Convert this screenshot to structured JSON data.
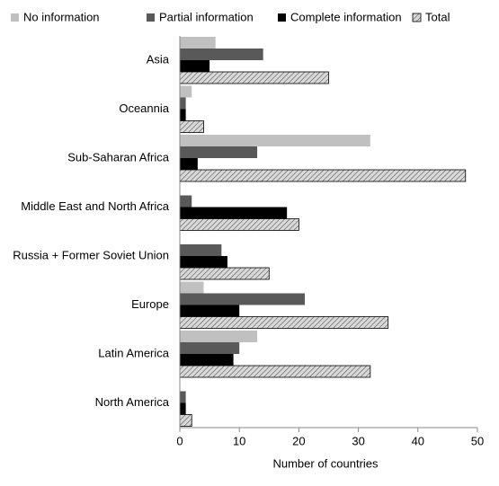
{
  "chart_data": {
    "type": "hbar",
    "categories": [
      "Asia",
      "Oceannia",
      "Sub-Saharan Africa",
      "Middle East and North Africa",
      "Russia + Former Soviet Union",
      "Europe",
      "Latin America",
      "North America"
    ],
    "series": [
      {
        "name": "No information",
        "color": "#c0c0c0",
        "values": [
          6,
          2,
          32,
          0,
          0,
          4,
          13,
          0
        ]
      },
      {
        "name": "Partial information",
        "color": "#595959",
        "values": [
          14,
          1,
          13,
          2,
          7,
          21,
          10,
          1
        ]
      },
      {
        "name": "Complete information",
        "color": "#000000",
        "values": [
          5,
          1,
          3,
          18,
          8,
          10,
          9,
          1
        ]
      },
      {
        "name": "Total",
        "color": "#d9d9d9",
        "hatch": true,
        "values": [
          25,
          4,
          48,
          20,
          15,
          35,
          32,
          2
        ]
      }
    ],
    "xlabel": "Number of countries",
    "xlim": [
      0,
      50
    ],
    "xticks": [
      0,
      10,
      20,
      30,
      40,
      50
    ],
    "legend": "top"
  }
}
